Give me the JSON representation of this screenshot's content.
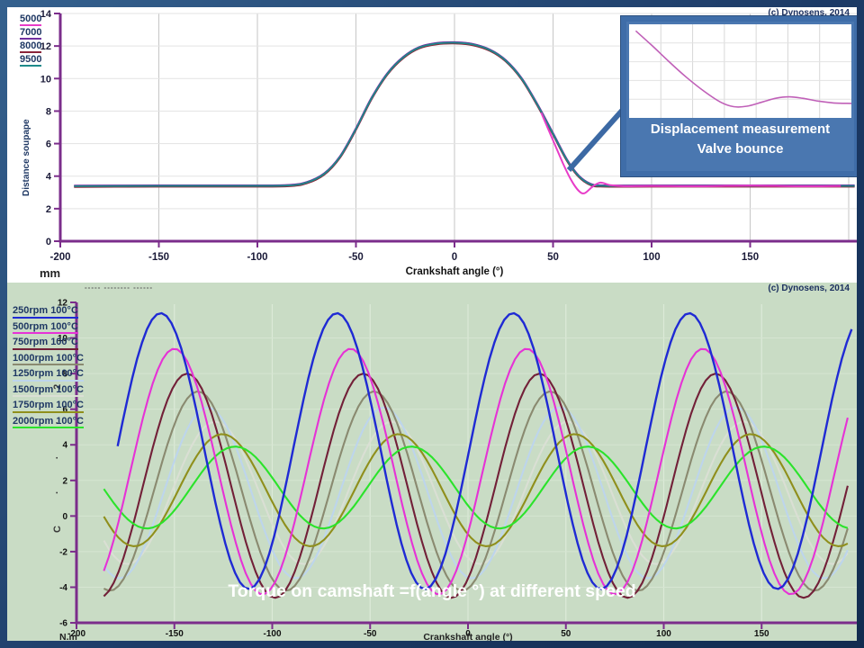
{
  "meta": {
    "copyright": "(c) Dynosens, 2014"
  },
  "chart_data": [
    {
      "type": "line",
      "title": "",
      "x_label": "Crankshaft angle (°)",
      "y_label": "Distance soupape",
      "y_unit": "mm",
      "x_ticks": [
        -200,
        -150,
        -100,
        -50,
        0,
        50,
        100,
        150
      ],
      "y_ticks": [
        0,
        2,
        4,
        6,
        8,
        10,
        12,
        14
      ],
      "x_range": [
        -200,
        204
      ],
      "y_range": [
        0,
        14
      ],
      "grid": true,
      "legend_position": "top-left",
      "series": [
        {
          "name": "5000",
          "color": "#e83cc8"
        },
        {
          "name": "7000",
          "color": "#7030a0"
        },
        {
          "name": "8000",
          "color": "#8b2438"
        },
        {
          "name": "9500",
          "color": "#1d8a8a"
        }
      ],
      "baseline_mm": 3.4,
      "peak_mm": 12.2,
      "lift_profile_deg_mm": [
        [
          -193,
          3.38
        ],
        [
          -150,
          3.4
        ],
        [
          -110,
          3.4
        ],
        [
          -85,
          3.42
        ],
        [
          -75,
          3.6
        ],
        [
          -66,
          4.15
        ],
        [
          -58,
          5.2
        ],
        [
          -50,
          6.9
        ],
        [
          -42,
          8.8
        ],
        [
          -34,
          10.3
        ],
        [
          -26,
          11.3
        ],
        [
          -18,
          11.9
        ],
        [
          -9,
          12.15
        ],
        [
          0,
          12.2
        ],
        [
          9,
          12.1
        ],
        [
          18,
          11.75
        ],
        [
          26,
          11.1
        ],
        [
          34,
          10.0
        ],
        [
          42,
          8.4
        ],
        [
          50,
          6.6
        ],
        [
          57,
          5.0
        ],
        [
          63,
          4.0
        ],
        [
          69,
          3.5
        ],
        [
          76,
          3.4
        ],
        [
          100,
          3.4
        ],
        [
          150,
          3.4
        ],
        [
          203,
          3.4
        ]
      ],
      "bounce_series": "5000",
      "bounce_deg_mm": [
        [
          44,
          7.9
        ],
        [
          50,
          6.2
        ],
        [
          55,
          4.8
        ],
        [
          59,
          3.8
        ],
        [
          63,
          3.1
        ],
        [
          66,
          2.95
        ],
        [
          70,
          3.35
        ],
        [
          74,
          3.6
        ],
        [
          79,
          3.45
        ],
        [
          86,
          3.38
        ],
        [
          100,
          3.4
        ],
        [
          125,
          3.38
        ],
        [
          150,
          3.42
        ],
        [
          175,
          3.38
        ],
        [
          196,
          3.4
        ]
      ],
      "inset": {
        "caption_line1": "Displacement measurement",
        "caption_line2": "Valve bounce",
        "curve_color": "#c060b8",
        "curve_points_frac": [
          [
            0.03,
            0.07
          ],
          [
            0.1,
            0.22
          ],
          [
            0.18,
            0.4
          ],
          [
            0.26,
            0.57
          ],
          [
            0.34,
            0.72
          ],
          [
            0.41,
            0.83
          ],
          [
            0.47,
            0.88
          ],
          [
            0.53,
            0.875
          ],
          [
            0.6,
            0.83
          ],
          [
            0.66,
            0.79
          ],
          [
            0.72,
            0.775
          ],
          [
            0.78,
            0.79
          ],
          [
            0.85,
            0.82
          ],
          [
            0.92,
            0.84
          ],
          [
            1.0,
            0.845
          ]
        ]
      }
    },
    {
      "type": "line",
      "title": "Torque on camshaft =f(angle °) at different speed",
      "x_label": "Crankshaft angle (°)",
      "y_unit": "N.m",
      "y_label_partial": "C · · · 2",
      "clipped_text": "----- -------- ------",
      "x_ticks": [
        -200,
        -150,
        -100,
        -50,
        0,
        50,
        100,
        150
      ],
      "y_ticks": [
        12,
        10,
        8,
        6,
        4,
        2,
        0,
        -2,
        -4,
        -6
      ],
      "x_range": [
        -200,
        199
      ],
      "y_range": [
        -6,
        12
      ],
      "grid": true,
      "waveform": "sine",
      "period_deg": 90,
      "series": [
        {
          "name": "250rpm 100°C",
          "color": "#1f2ad4",
          "max": 11.4,
          "min": -4.1,
          "first_peak_deg": -157,
          "x_start": -179
        },
        {
          "name": "500rpm 100°C",
          "color": "#e632d6",
          "max": 9.4,
          "min": -4.4,
          "first_peak_deg": -150,
          "x_start": -186
        },
        {
          "name": "750rpm 100°C",
          "color": "#722038",
          "max": 8.0,
          "min": -4.6,
          "first_peak_deg": -143.5,
          "x_start": -186
        },
        {
          "name": "1000rpm 100°C",
          "color": "#8a8a70",
          "max": 7.0,
          "min": -4.2,
          "first_peak_deg": -138,
          "x_start": -186
        },
        {
          "name": "1250rpm 100°C",
          "color": "#bdd5ec",
          "max": 6.1,
          "min": -3.5,
          "first_peak_deg": -133,
          "x_start": -186
        },
        {
          "name": "1500rpm 100°C",
          "color": "#dadfd4",
          "max": 5.3,
          "min": -2.7,
          "first_peak_deg": -129,
          "x_start": -186
        },
        {
          "name": "1750rpm 100°C",
          "color": "#8f8f1c",
          "max": 4.6,
          "min": -1.7,
          "first_peak_deg": -125.5,
          "x_start": -186
        },
        {
          "name": "2000rpm 100°C",
          "color": "#2be32b",
          "max": 3.9,
          "min": -0.7,
          "first_peak_deg": -119,
          "x_start": -186
        }
      ]
    }
  ]
}
